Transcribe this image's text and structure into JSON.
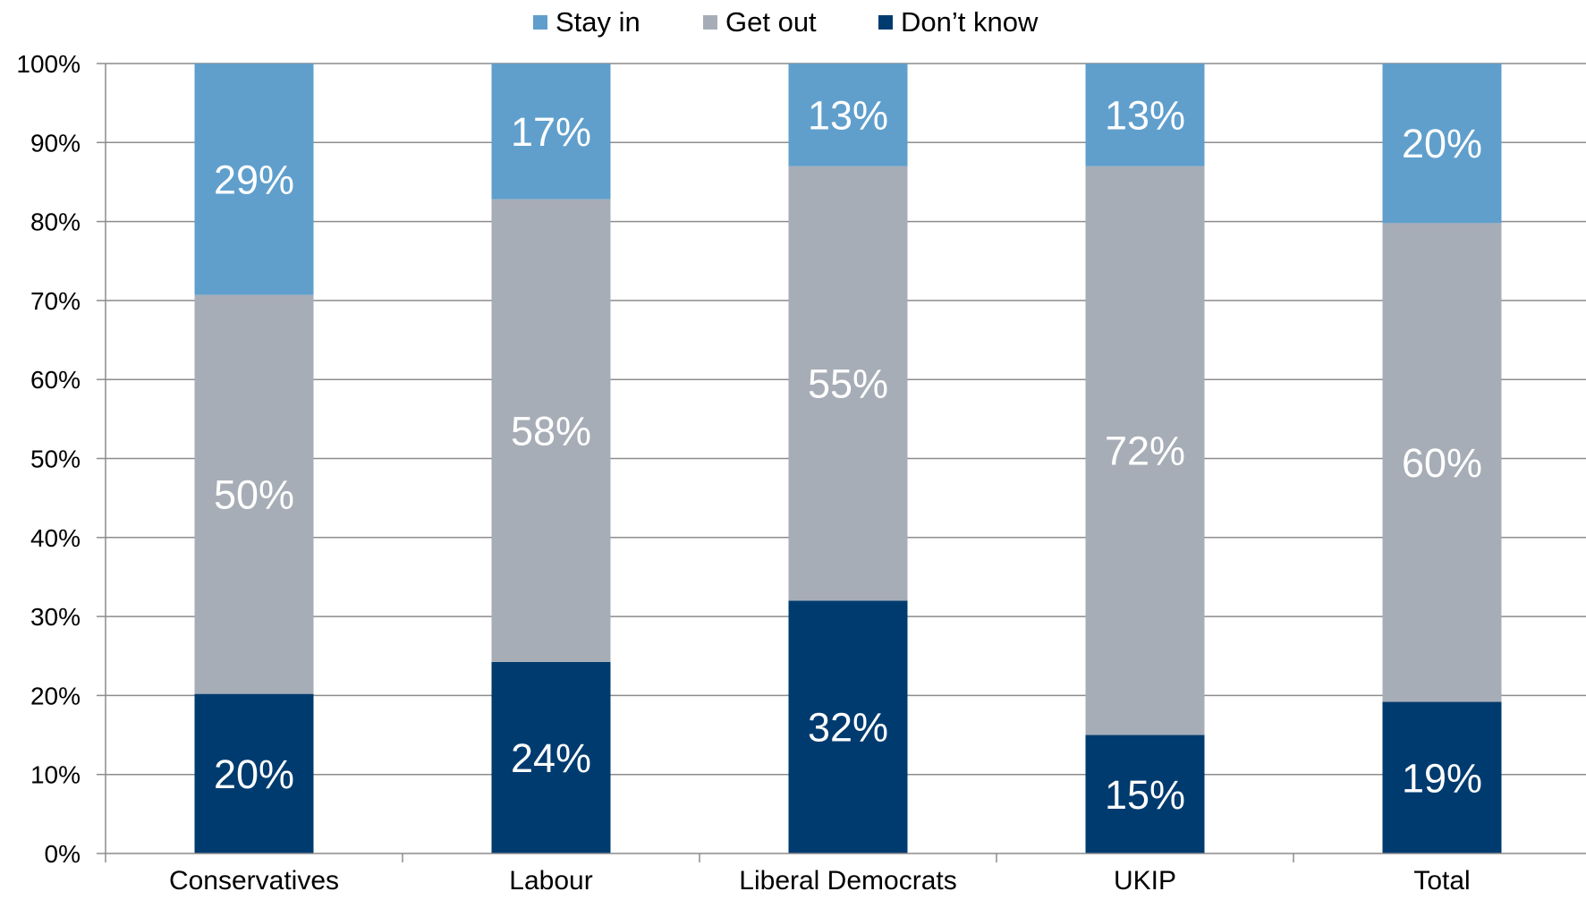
{
  "chart_data": {
    "type": "bar",
    "stacked": true,
    "categories": [
      "Conservatives",
      "Labour",
      "Liberal Democrats",
      "UKIP",
      "Total"
    ],
    "series": [
      {
        "name": "Don’t know",
        "color": "#003b6f",
        "values": [
          20,
          24,
          32,
          15,
          19
        ],
        "labels": [
          "20%",
          "24%",
          "32%",
          "15%",
          "19%"
        ]
      },
      {
        "name": "Get out",
        "color": "#a7adb6",
        "values": [
          50,
          58,
          55,
          72,
          60
        ],
        "labels": [
          "50%",
          "58%",
          "55%",
          "72%",
          "60%"
        ]
      },
      {
        "name": "Stay in",
        "color": "#609fcc",
        "values": [
          29,
          17,
          13,
          13,
          20
        ],
        "labels": [
          "29%",
          "17%",
          "13%",
          "13%",
          "20%"
        ]
      }
    ],
    "legend_order": [
      "Stay in",
      "Get out",
      "Don’t know"
    ],
    "legend_position": "top",
    "yticks": [
      "0%",
      "10%",
      "20%",
      "30%",
      "40%",
      "50%",
      "60%",
      "70%",
      "80%",
      "90%",
      "100%"
    ],
    "ylim": [
      0,
      100
    ],
    "grid": true,
    "title": "",
    "xlabel": "",
    "ylabel": ""
  }
}
